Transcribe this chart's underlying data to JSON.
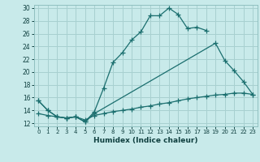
{
  "xlabel": "Humidex (Indice chaleur)",
  "bg_color": "#c8eaea",
  "grid_color": "#a8d0d0",
  "line_color": "#1a6e6e",
  "xlim": [
    -0.5,
    23.5
  ],
  "ylim": [
    11.5,
    30.5
  ],
  "xticks": [
    0,
    1,
    2,
    3,
    4,
    5,
    6,
    7,
    8,
    9,
    10,
    11,
    12,
    13,
    14,
    15,
    16,
    17,
    18,
    19,
    20,
    21,
    22,
    23
  ],
  "yticks": [
    12,
    14,
    16,
    18,
    20,
    22,
    24,
    26,
    28,
    30
  ],
  "line1_x": [
    0,
    1,
    2,
    3,
    4,
    5,
    6,
    7,
    8,
    9,
    10,
    11,
    12,
    13,
    14,
    15,
    16,
    17,
    18
  ],
  "line1_y": [
    15.5,
    14.0,
    13.0,
    12.8,
    13.0,
    12.2,
    13.8,
    17.5,
    21.5,
    23.0,
    25.0,
    26.3,
    28.8,
    28.8,
    30.0,
    29.0,
    26.8,
    27.0,
    26.5
  ],
  "line2_x": [
    0,
    1,
    2,
    3,
    4,
    5,
    6,
    19,
    20,
    21,
    22,
    23
  ],
  "line2_y": [
    15.5,
    14.0,
    13.0,
    12.8,
    13.0,
    12.2,
    13.5,
    24.5,
    21.8,
    20.2,
    18.5,
    16.5
  ],
  "line3_x": [
    0,
    1,
    2,
    3,
    4,
    5,
    6,
    7,
    8,
    9,
    10,
    11,
    12,
    13,
    14,
    15,
    16,
    17,
    18,
    19,
    20,
    21,
    22,
    23
  ],
  "line3_y": [
    13.5,
    13.2,
    13.0,
    12.8,
    13.0,
    12.5,
    13.2,
    13.5,
    13.8,
    14.0,
    14.2,
    14.5,
    14.7,
    15.0,
    15.2,
    15.5,
    15.8,
    16.0,
    16.2,
    16.4,
    16.5,
    16.7,
    16.7,
    16.5
  ]
}
